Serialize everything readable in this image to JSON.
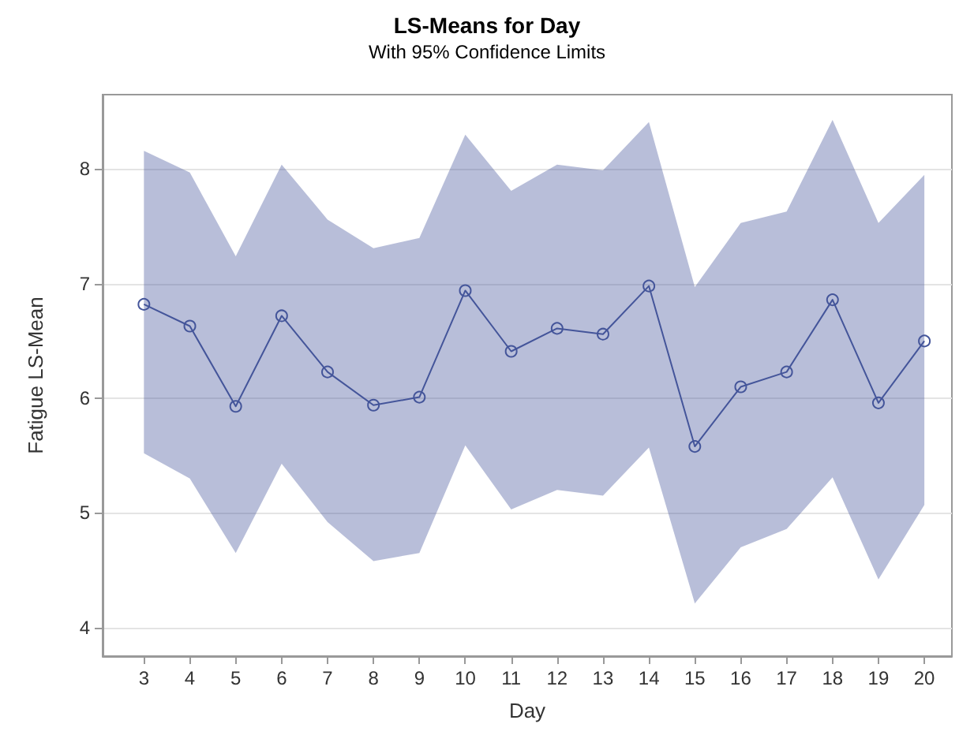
{
  "chart_data": {
    "type": "line",
    "title": "LS-Means for Day",
    "subtitle": "With 95% Confidence Limits",
    "xlabel": "Day",
    "ylabel": "Fatigue LS-Mean",
    "x": [
      3,
      4,
      5,
      6,
      7,
      8,
      9,
      10,
      11,
      12,
      13,
      14,
      15,
      16,
      17,
      18,
      19,
      20
    ],
    "series": [
      {
        "color": "#44559a",
        "values": [
          6.82,
          6.63,
          5.93,
          6.72,
          6.23,
          5.94,
          6.01,
          6.94,
          6.41,
          6.61,
          6.56,
          6.98,
          5.58,
          6.1,
          6.23,
          6.86,
          5.96,
          6.5
        ],
        "upper": [
          8.16,
          7.97,
          7.24,
          8.04,
          7.56,
          7.31,
          7.4,
          8.3,
          7.81,
          8.04,
          7.99,
          8.41,
          6.97,
          7.53,
          7.63,
          8.43,
          7.53,
          7.95
        ],
        "lower": [
          5.52,
          5.3,
          4.65,
          5.43,
          4.92,
          4.58,
          4.65,
          5.59,
          5.03,
          5.2,
          5.15,
          5.57,
          4.21,
          4.7,
          4.86,
          5.31,
          4.42,
          5.07
        ]
      }
    ],
    "xlim": [
      2.1,
      20.6
    ],
    "xticks": [
      3,
      4,
      5,
      6,
      7,
      8,
      9,
      10,
      11,
      12,
      13,
      14,
      15,
      16,
      17,
      18,
      19,
      20
    ],
    "ylim": [
      3.75,
      8.65
    ],
    "yticks": [
      4,
      5,
      6,
      7,
      8
    ],
    "grid": "y",
    "marker": "circle",
    "line_style": "solid"
  }
}
